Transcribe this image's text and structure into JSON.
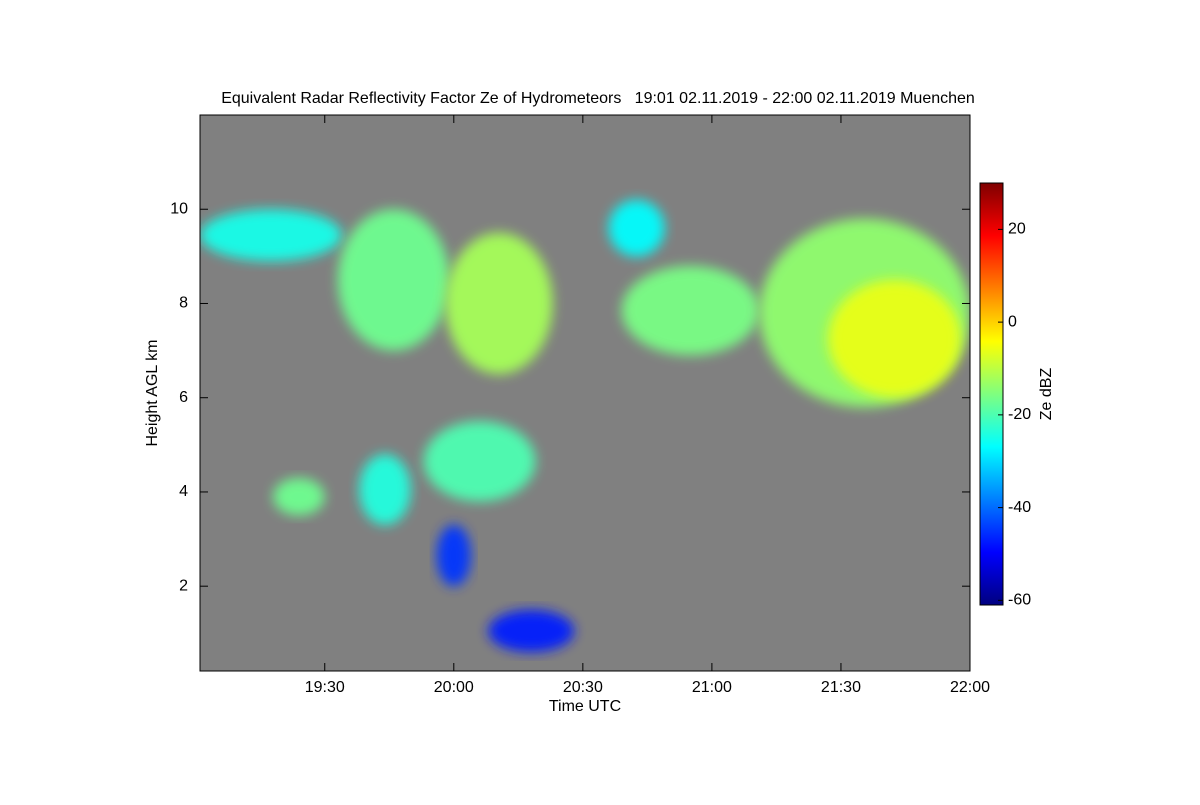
{
  "chart_data": {
    "type": "heatmap",
    "title": "Equivalent Radar Reflectivity Factor Ze of Hydrometeors   19:01 02.11.2019 - 22:00 02.11.2019 Muenchen",
    "xlabel": "Time UTC",
    "ylabel": "Height AGL km",
    "xlim": [
      1141,
      1320
    ],
    "xticks": [
      {
        "value": 1170,
        "label": "19:30"
      },
      {
        "value": 1200,
        "label": "20:00"
      },
      {
        "value": 1230,
        "label": "20:30"
      },
      {
        "value": 1260,
        "label": "21:00"
      },
      {
        "value": 1290,
        "label": "21:30"
      },
      {
        "value": 1320,
        "label": "22:00"
      }
    ],
    "ylim": [
      0.2,
      12
    ],
    "yticks": [
      2,
      4,
      6,
      8,
      10
    ],
    "background": "#808080",
    "colormap": [
      "#00007f",
      "#0000ff",
      "#007fff",
      "#00ffff",
      "#7fff7f",
      "#ffff00",
      "#ff7f00",
      "#ff0000",
      "#7f0000"
    ],
    "colorbar": {
      "label": "Ze dBZ",
      "zlim": [
        -61,
        30
      ],
      "ticks": [
        -60,
        -40,
        -20,
        0,
        20
      ]
    },
    "regions": [
      {
        "x": [
          1141,
          1174
        ],
        "y": [
          8.9,
          10.0
        ],
        "value": -25
      },
      {
        "x": [
          1173,
          1199
        ],
        "y": [
          7.0,
          10.0
        ],
        "value": -17
      },
      {
        "x": [
          1198,
          1223
        ],
        "y": [
          6.5,
          9.5
        ],
        "value": -12
      },
      {
        "x": [
          1236,
          1249
        ],
        "y": [
          9.0,
          10.2
        ],
        "value": -27
      },
      {
        "x": [
          1239,
          1271
        ],
        "y": [
          6.9,
          8.8
        ],
        "value": -16
      },
      {
        "x": [
          1271,
          1320
        ],
        "y": [
          5.8,
          9.8
        ],
        "value": -14
      },
      {
        "x": [
          1287,
          1318
        ],
        "y": [
          6.0,
          8.5
        ],
        "value": -6
      },
      {
        "x": [
          1193,
          1219
        ],
        "y": [
          3.8,
          5.5
        ],
        "value": -20
      },
      {
        "x": [
          1158,
          1170
        ],
        "y": [
          3.5,
          4.3
        ],
        "value": -17
      },
      {
        "x": [
          1178,
          1190
        ],
        "y": [
          3.3,
          4.8
        ],
        "value": -24
      },
      {
        "x": [
          1196,
          1204
        ],
        "y": [
          2.0,
          3.3
        ],
        "value": -45
      },
      {
        "x": [
          1208,
          1228
        ],
        "y": [
          0.6,
          1.5
        ],
        "value": -47
      }
    ]
  }
}
